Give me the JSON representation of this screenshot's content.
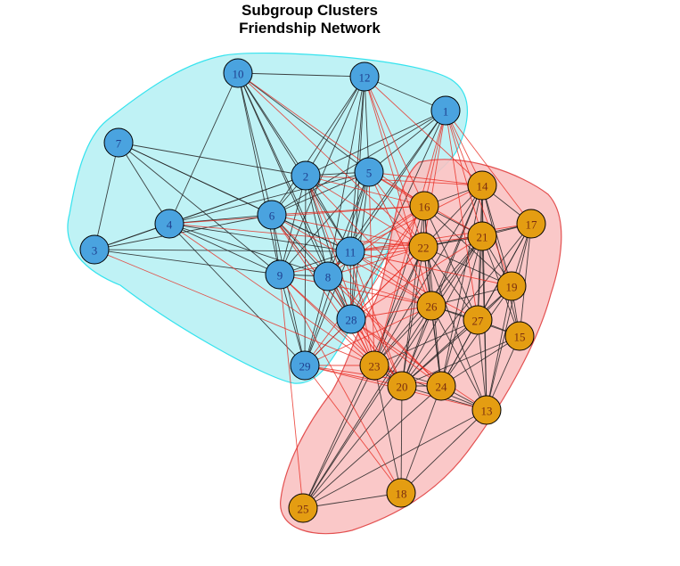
{
  "title": {
    "line1": "Subgroup Clusters",
    "line2": "Friendship Network"
  },
  "colors": {
    "group1_node": "#4aa3df",
    "group1_label": "#1f3f8f",
    "group1_hull_fill": "#bff2f5",
    "group1_hull_stroke": "#35e3ee",
    "group2_node": "#e49d12",
    "group2_label": "#7a2d10",
    "group2_hull_fill": "#f9c2c2",
    "group2_hull_stroke": "#e35050",
    "within_edge": "#222222",
    "between_edge": "#e8291f"
  },
  "groups": [
    {
      "id": 1,
      "nodes": [
        "10",
        "12",
        "1",
        "7",
        "2",
        "5",
        "4",
        "6",
        "3",
        "11",
        "9",
        "8",
        "28",
        "29"
      ]
    },
    {
      "id": 2,
      "nodes": [
        "14",
        "16",
        "17",
        "21",
        "22",
        "19",
        "26",
        "27",
        "15",
        "23",
        "20",
        "24",
        "13",
        "18",
        "25"
      ]
    }
  ]
}
